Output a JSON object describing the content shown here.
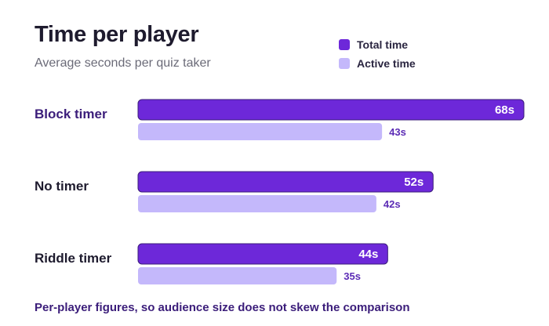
{
  "chart_data": {
    "type": "bar",
    "orientation": "horizontal",
    "title": "Time per player",
    "subtitle": "Average seconds per quiz taker",
    "categories": [
      "Block timer",
      "No timer",
      "Riddle timer"
    ],
    "highlighted_category": "Block timer",
    "series": [
      {
        "name": "Total time",
        "color": "#6d28d9",
        "values": [
          68,
          52,
          44
        ],
        "labels": [
          "68s",
          "52s",
          "44s"
        ]
      },
      {
        "name": "Active time",
        "color": "#c4b8fb",
        "values": [
          43,
          42,
          35
        ],
        "labels": [
          "43s",
          "42s",
          "35s"
        ]
      }
    ],
    "xlim": [
      0,
      68
    ],
    "grid": false,
    "legend_position": "top-right",
    "footnote": "Per-player figures, so audience size does not skew the comparison"
  },
  "colors": {
    "highlight_label": "#3b1d7a",
    "default_label": "#1e1b2e"
  }
}
